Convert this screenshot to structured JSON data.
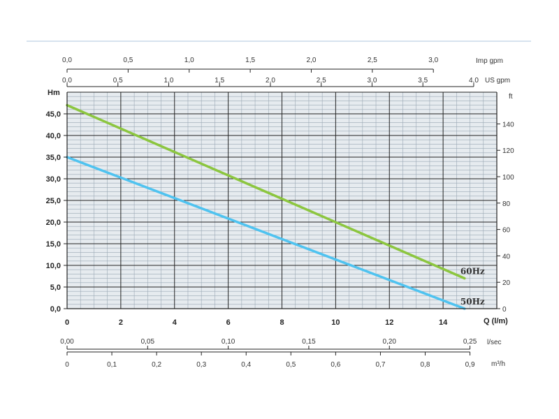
{
  "chart_data": {
    "type": "line",
    "x_label": "Q (l/m)",
    "y_label": "Hm",
    "y_right_label": "ft",
    "x_ticks": [
      "0",
      "2",
      "4",
      "6",
      "8",
      "10",
      "12",
      "14"
    ],
    "y_ticks": [
      "0,0",
      "5,0",
      "10,0",
      "15,0",
      "20,0",
      "25,0",
      "30,0",
      "35,0",
      "40,0",
      "45,0"
    ],
    "y_right_ticks": [
      "0",
      "20",
      "40",
      "60",
      "80",
      "100",
      "120",
      "140"
    ],
    "xlim": [
      0,
      16
    ],
    "ylim": [
      0,
      50
    ],
    "series": [
      {
        "name": "60Hz",
        "color": "#8cc63f",
        "x": [
          0,
          14.8
        ],
        "y": [
          47,
          7
        ]
      },
      {
        "name": "50Hz",
        "color": "#4fc3f0",
        "x": [
          0,
          14.8
        ],
        "y": [
          35,
          0
        ]
      }
    ],
    "top_axes": [
      {
        "label": "Imp gpm",
        "ticks": [
          "0,0",
          "0,5",
          "1,0",
          "1,5",
          "2,0",
          "2,5",
          "3,0"
        ],
        "values": [
          0,
          0.5,
          1.0,
          1.5,
          2.0,
          2.5,
          3.0
        ],
        "lmin_per_unit": 4.546
      },
      {
        "label": "US gpm",
        "ticks": [
          "0,0",
          "0,5",
          "1,0",
          "1,5",
          "2,0",
          "2,5",
          "3,0",
          "3,5",
          "4,0"
        ],
        "values": [
          0,
          0.5,
          1.0,
          1.5,
          2.0,
          2.5,
          3.0,
          3.5,
          4.0
        ],
        "lmin_per_unit": 3.785
      }
    ],
    "bottom_axes": [
      {
        "label": "l/sec",
        "ticks": [
          "0,00",
          "0,05",
          "0,10",
          "0,15",
          "0,20",
          "0,25"
        ],
        "values": [
          0,
          0.05,
          0.1,
          0.15,
          0.2,
          0.25
        ],
        "lmin_per_unit": 60
      },
      {
        "label": "m³/h",
        "ticks": [
          "0",
          "0,1",
          "0,2",
          "0,3",
          "0,4",
          "0,5",
          "0,6",
          "0,7",
          "0,8",
          "0,9"
        ],
        "values": [
          0,
          0.1,
          0.2,
          0.3,
          0.4,
          0.5,
          0.6,
          0.7,
          0.8,
          0.9
        ],
        "lmin_per_unit": 16.667
      }
    ],
    "grid": true,
    "colors": {
      "grid_bg": "#e6ebef",
      "grid_major": "#222222",
      "grid_minor": "#9aa8b4",
      "divider": "#c8d8e8"
    }
  }
}
